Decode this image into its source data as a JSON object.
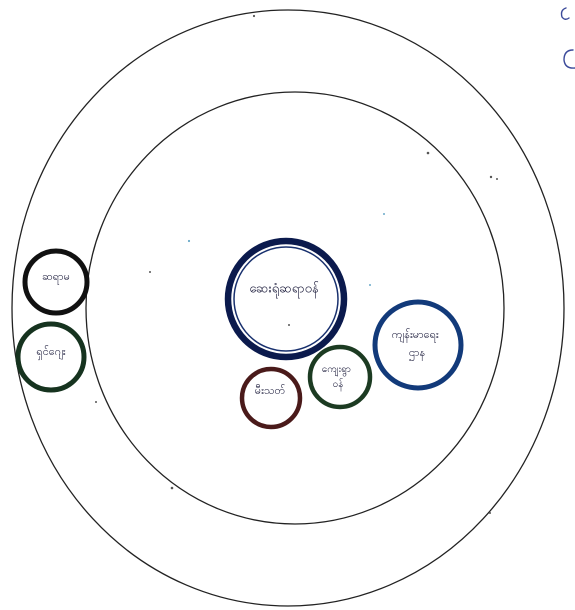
{
  "diagram": {
    "type": "hand-drawn venn / influence diagram",
    "outer_ring": {
      "label": ""
    },
    "inner_ring": {
      "label": ""
    },
    "nodes": [
      {
        "id": "center-large",
        "label": "ဆေးရုံဆရာဝန်",
        "ring": "inner",
        "stroke": "#0b1a4d",
        "size": "large"
      },
      {
        "id": "right-medium",
        "label": "ကျန်းမာရေး ဌာန",
        "ring": "inner",
        "stroke": "#123a7a",
        "size": "medium"
      },
      {
        "id": "lower-mid",
        "label": "ကျေးရွာ ဝန်",
        "ring": "inner",
        "stroke": "#1c3b22",
        "size": "small"
      },
      {
        "id": "lower-left",
        "label": "မီးသတ်",
        "ring": "inner",
        "stroke": "#4a1a1a",
        "size": "small"
      },
      {
        "id": "outer-top",
        "label": "ဆရာမ",
        "ring": "outer",
        "stroke": "#111111",
        "size": "small"
      },
      {
        "id": "outer-bottom",
        "label": "ရှင်ဂျေး",
        "ring": "outer",
        "stroke": "#16331f",
        "size": "small"
      }
    ]
  },
  "colors": {
    "ring_stroke": "#222222",
    "background": "#ffffff"
  }
}
